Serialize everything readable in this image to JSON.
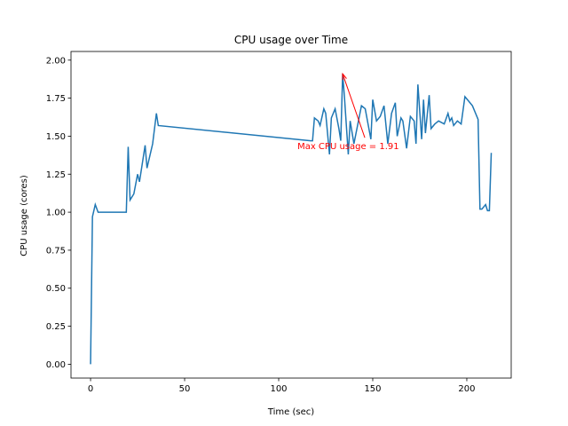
{
  "chart_data": {
    "type": "line",
    "title": "CPU usage over Time",
    "x_label": "Time (sec)",
    "y_label": "CPU usage (cores)",
    "x": [
      0,
      1,
      2.5,
      4,
      6,
      8,
      10,
      12,
      14,
      16,
      19,
      20,
      21,
      23,
      25,
      26,
      29,
      30,
      33,
      35,
      36,
      117,
      118,
      119,
      121,
      122,
      124,
      125,
      127,
      128,
      130,
      132,
      133,
      134,
      135,
      137,
      138,
      140,
      144,
      146,
      149,
      150,
      152,
      154,
      156,
      158,
      160,
      162,
      163,
      165,
      166,
      168,
      170,
      172,
      173,
      174,
      176,
      177,
      178,
      180,
      181,
      183,
      185,
      188,
      190,
      191,
      192,
      193,
      195,
      197,
      199,
      201,
      203,
      206,
      207,
      208,
      210,
      211,
      212,
      213
    ],
    "series": [
      {
        "name": "CPU usage",
        "color": "#1f77b4",
        "values": [
          0.0,
          0.97,
          1.05,
          1.0,
          1.0,
          1.0,
          1.0,
          1.0,
          1.0,
          1.0,
          1.0,
          1.43,
          1.08,
          1.12,
          1.25,
          1.2,
          1.44,
          1.29,
          1.45,
          1.65,
          1.57,
          1.47,
          1.47,
          1.62,
          1.6,
          1.57,
          1.68,
          1.65,
          1.38,
          1.62,
          1.68,
          1.55,
          1.47,
          1.91,
          1.75,
          1.38,
          1.6,
          1.45,
          1.7,
          1.68,
          1.48,
          1.74,
          1.6,
          1.63,
          1.7,
          1.45,
          1.65,
          1.72,
          1.5,
          1.62,
          1.6,
          1.42,
          1.63,
          1.6,
          1.45,
          1.84,
          1.48,
          1.74,
          1.52,
          1.77,
          1.55,
          1.58,
          1.6,
          1.58,
          1.65,
          1.6,
          1.62,
          1.57,
          1.6,
          1.58,
          1.76,
          1.73,
          1.7,
          1.61,
          1.02,
          1.02,
          1.05,
          1.01,
          1.01,
          1.39
        ]
      }
    ],
    "xlim": [
      -10.4,
      223.6
    ],
    "xticks": [
      0,
      50,
      100,
      150,
      200
    ],
    "ylim": [
      -0.091,
      2.057
    ],
    "yticks": [
      {
        "value": 0,
        "label": "0.00"
      },
      {
        "value": 0.25,
        "label": "0.25"
      },
      {
        "value": 0.5,
        "label": "0.50"
      },
      {
        "value": 0.75,
        "label": "0.75"
      },
      {
        "value": 1,
        "label": "1.00"
      },
      {
        "value": 1.25,
        "label": "1.25"
      },
      {
        "value": 1.5,
        "label": "1.50"
      },
      {
        "value": 1.75,
        "label": "1.75"
      },
      {
        "value": 2,
        "label": "2.00"
      }
    ],
    "annotation": {
      "text": "Max CPU usage = 1.91",
      "x": 134,
      "y": 1.91,
      "color": "#ff0000"
    }
  }
}
